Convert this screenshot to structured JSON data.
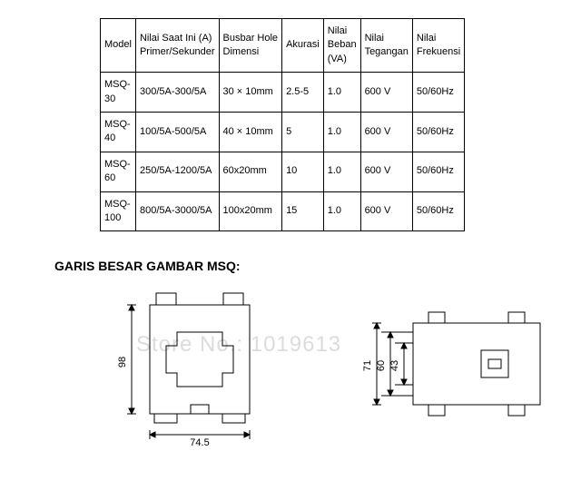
{
  "table": {
    "headers": {
      "model": "Model",
      "current": "Nilai Saat Ini (A)\nPrimer/Sekunder",
      "busbar": "Busbar Hole\nDimensi",
      "accuracy": "Akurasi",
      "load": "Nilai\nBeban\n(VA)",
      "voltage": "Nilai\nTegangan",
      "freq": "Nilai\nFrekuensi"
    },
    "rows": [
      {
        "model": "MSQ-\n30",
        "current": "300/5A-300/5A",
        "busbar": "30 × 10mm",
        "accuracy": "2.5-5",
        "load": "1.0",
        "voltage": "600 V",
        "freq": "50/60Hz"
      },
      {
        "model": "MSQ-\n40",
        "current": "100/5A-500/5A",
        "busbar": "40 × 10mm",
        "accuracy": "5",
        "load": "1.0",
        "voltage": "600 V",
        "freq": "50/60Hz"
      },
      {
        "model": "MSQ-\n60",
        "current": "250/5A-1200/5A",
        "busbar": "60x20mm",
        "accuracy": "10",
        "load": "1.0",
        "voltage": "600 V",
        "freq": "50/60Hz"
      },
      {
        "model": "MSQ-\n100",
        "current": "800/5A-3000/5A",
        "busbar": "100x20mm",
        "accuracy": "15",
        "load": "1.0",
        "voltage": "600 V",
        "freq": "50/60Hz"
      }
    ]
  },
  "section_title": "GARIS BESAR GAMBAR MSQ:",
  "watermark": "Store No.: 1019613",
  "diagram1": {
    "dims": {
      "height": "98",
      "width": "74.5"
    }
  },
  "diagram2": {
    "dims": {
      "d71": "71",
      "d60": "60",
      "d43": "43"
    }
  },
  "colors": {
    "line": "#000000",
    "bg": "#ffffff",
    "wm": "#dcdcdc"
  }
}
